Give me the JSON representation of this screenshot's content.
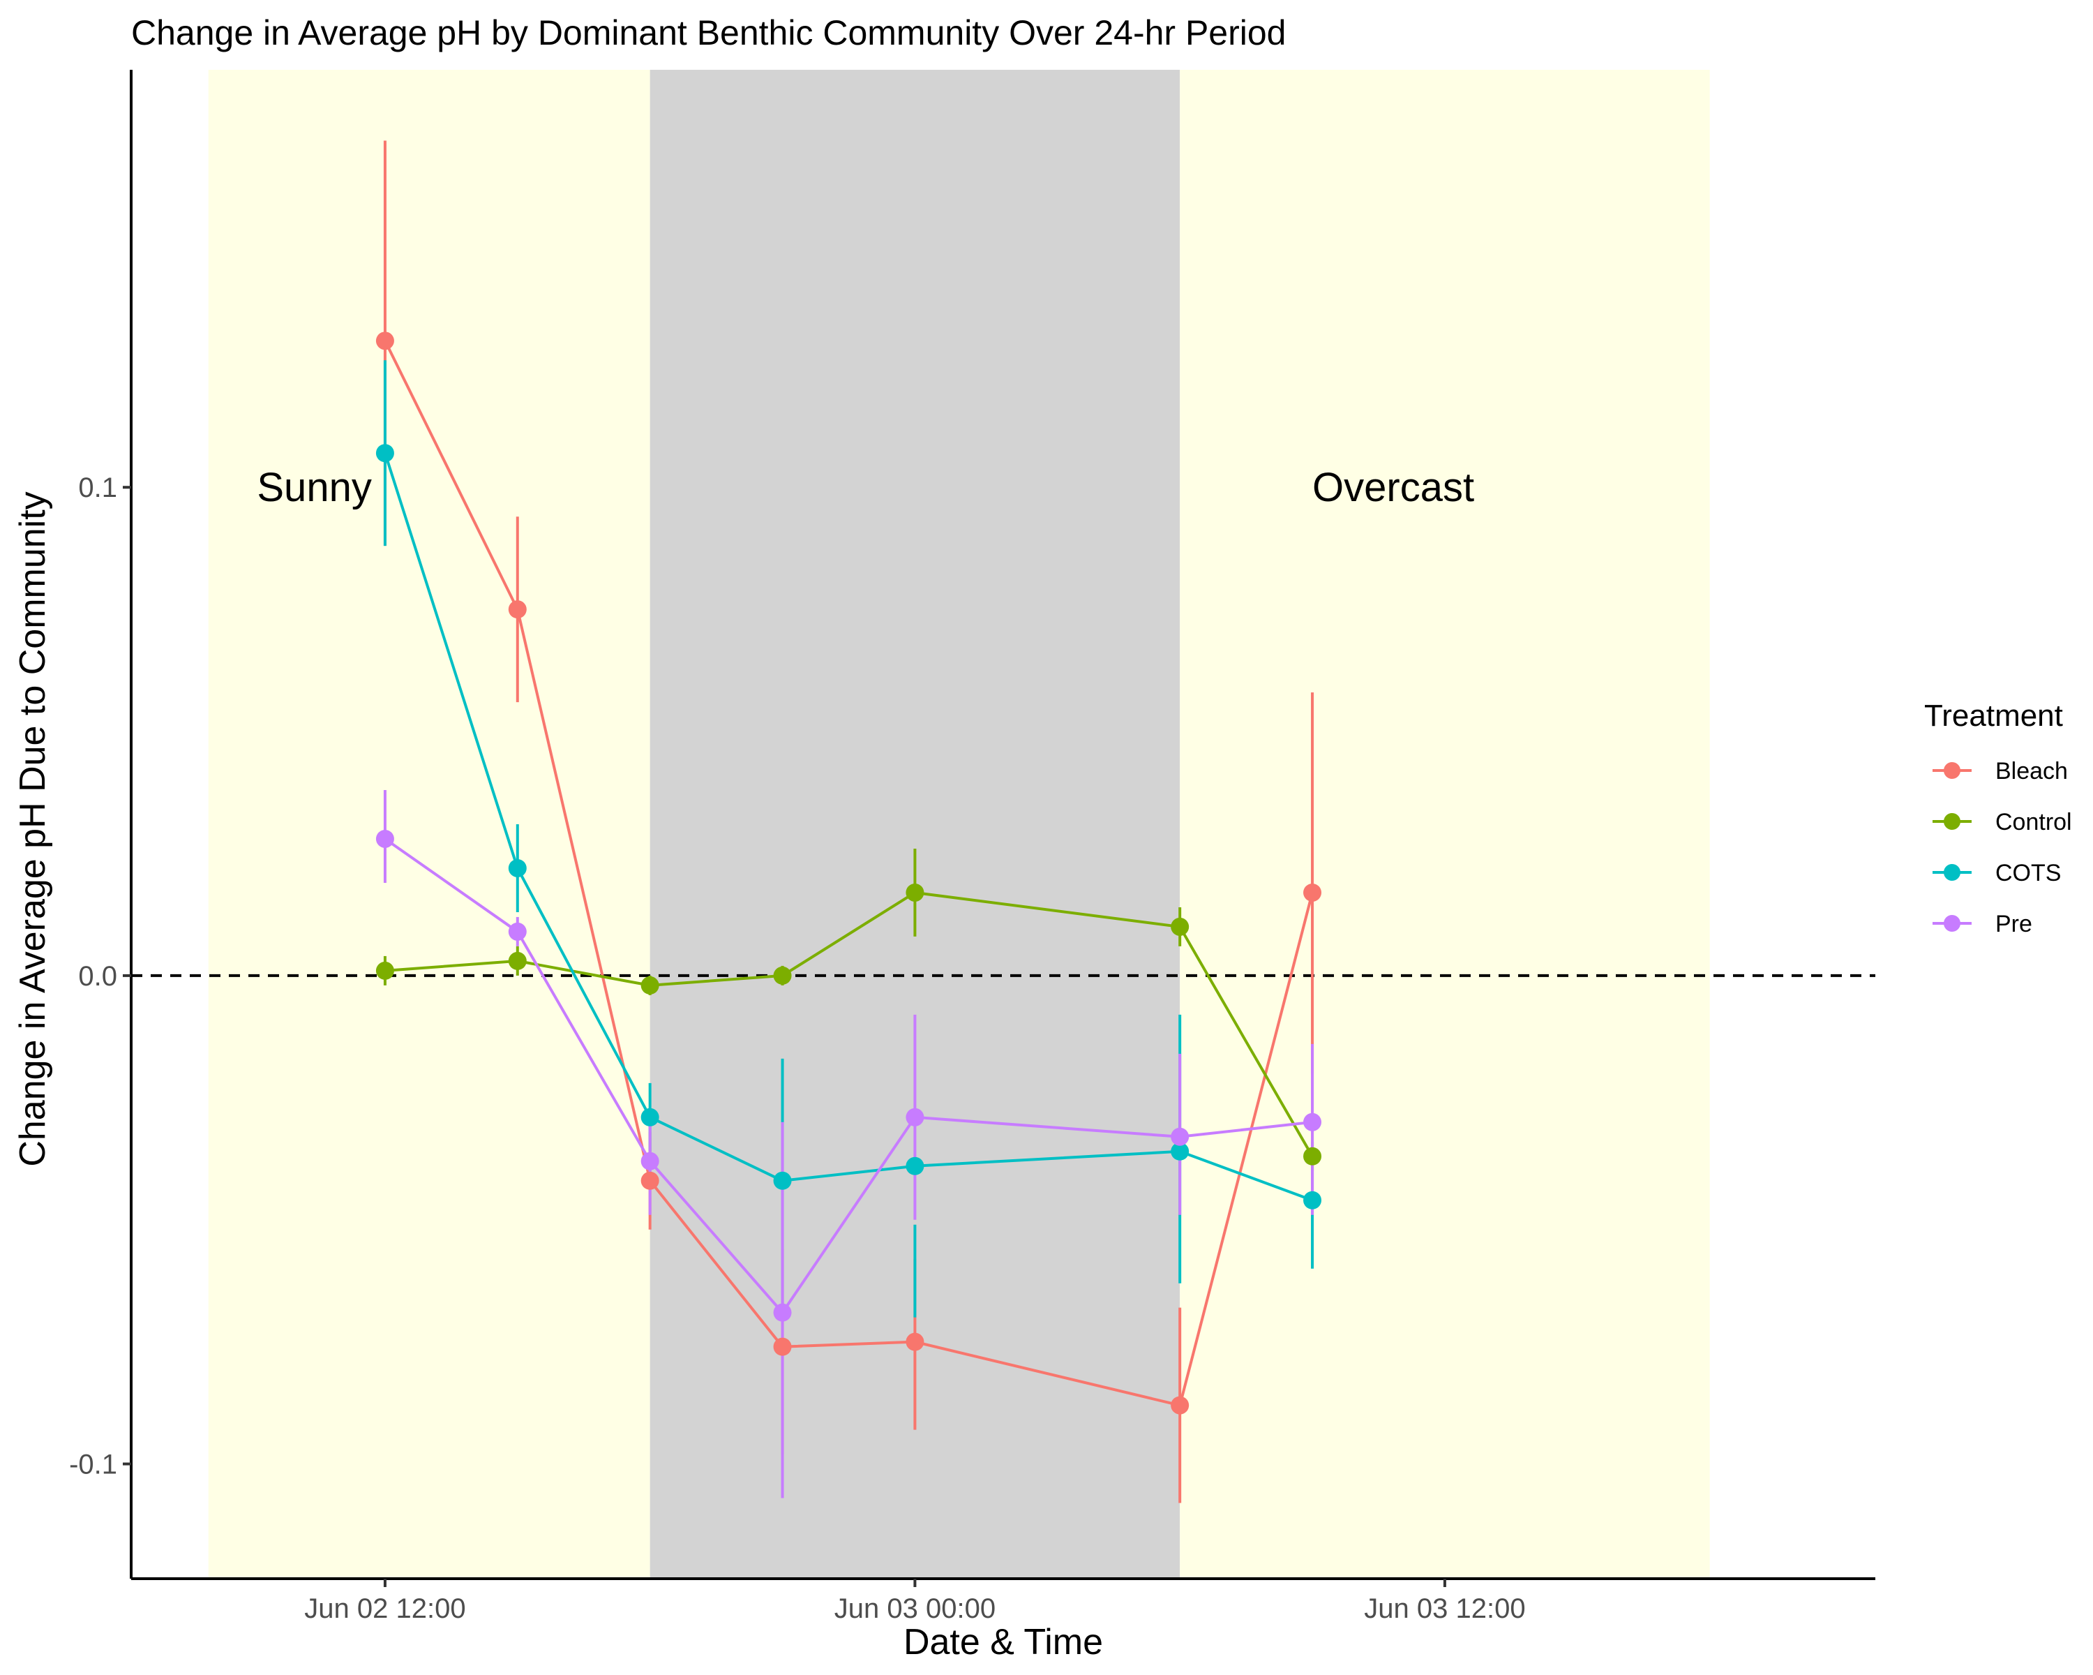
{
  "chart_data": {
    "type": "line",
    "title": "Change in Average pH by Dominant Benthic Community Over 24-hr Period",
    "xlabel": "Date & Time",
    "ylabel": "Change in Average pH Due to Community",
    "x_unit": "hours relative to Jun 02 00:00",
    "xlim_hours": [
      6.25,
      45.75
    ],
    "ylim": [
      -0.1235,
      0.1855
    ],
    "x_ticks": [
      {
        "hour": 12,
        "label": "Jun 02 12:00"
      },
      {
        "hour": 24,
        "label": "Jun 03 00:00"
      },
      {
        "hour": 36,
        "label": "Jun 03 12:00"
      }
    ],
    "y_ticks": [
      {
        "value": 0.1,
        "label": "0.1"
      },
      {
        "value": 0.0,
        "label": "0.0"
      },
      {
        "value": -0.1,
        "label": "-0.1"
      }
    ],
    "reference_line": {
      "y": 0,
      "style": "dashed"
    },
    "x_hours": [
      12,
      15,
      18,
      21,
      24,
      30,
      33
    ],
    "x_labels": [
      "Jun 02 12:00",
      "Jun 02 15:00",
      "Jun 02 18:00",
      "Jun 02 21:00",
      "Jun 03 00:00",
      "Jun 03 06:00",
      "Jun 03 09:00"
    ],
    "shaded_regions": [
      {
        "label": "Sunny",
        "start_hour": 8,
        "end_hour": 18,
        "color": "#ffffe5",
        "label_hour": 9.1,
        "label_y": 0.1
      },
      {
        "label": "",
        "start_hour": 18,
        "end_hour": 30,
        "color": "#d3d3d3"
      },
      {
        "label": "Overcast",
        "start_hour": 30,
        "end_hour": 42,
        "color": "#ffffe5",
        "label_hour": 33,
        "label_y": 0.1
      }
    ],
    "legend": {
      "title": "Treatment",
      "position": "right"
    },
    "grid": false,
    "series": [
      {
        "name": "Bleach",
        "color": "#f8766d",
        "values": [
          0.13,
          0.075,
          -0.042,
          -0.076,
          -0.075,
          -0.088,
          0.017
        ],
        "error_low": [
          0.088,
          0.056,
          -0.052,
          -0.098,
          -0.093,
          -0.108,
          -0.02
        ],
        "error_high": [
          0.171,
          0.094,
          -0.032,
          -0.056,
          -0.058,
          -0.068,
          0.058
        ]
      },
      {
        "name": "Control",
        "color": "#7cae00",
        "values": [
          0.001,
          0.003,
          -0.002,
          0.0,
          0.017,
          0.01,
          -0.037
        ],
        "error_low": [
          -0.002,
          0.0,
          -0.004,
          -0.002,
          0.008,
          0.006,
          -0.04
        ],
        "error_high": [
          0.004,
          0.006,
          0.0,
          0.002,
          0.026,
          0.014,
          -0.034
        ]
      },
      {
        "name": "COTS",
        "color": "#00bfc4",
        "values": [
          0.107,
          0.022,
          -0.029,
          -0.042,
          -0.039,
          -0.036,
          -0.046
        ],
        "error_low": [
          0.088,
          0.013,
          -0.036,
          -0.07,
          -0.07,
          -0.063,
          -0.06
        ],
        "error_high": [
          0.126,
          0.031,
          -0.022,
          -0.017,
          -0.051,
          -0.008,
          -0.034
        ]
      },
      {
        "name": "Pre",
        "color": "#c77cff",
        "values": [
          0.028,
          0.009,
          -0.038,
          -0.069,
          -0.029,
          -0.033,
          -0.03
        ],
        "error_low": [
          0.019,
          0.006,
          -0.049,
          -0.107,
          -0.05,
          -0.049,
          -0.049
        ],
        "error_high": [
          0.038,
          0.012,
          -0.03,
          -0.03,
          -0.008,
          -0.016,
          -0.014
        ]
      }
    ]
  }
}
